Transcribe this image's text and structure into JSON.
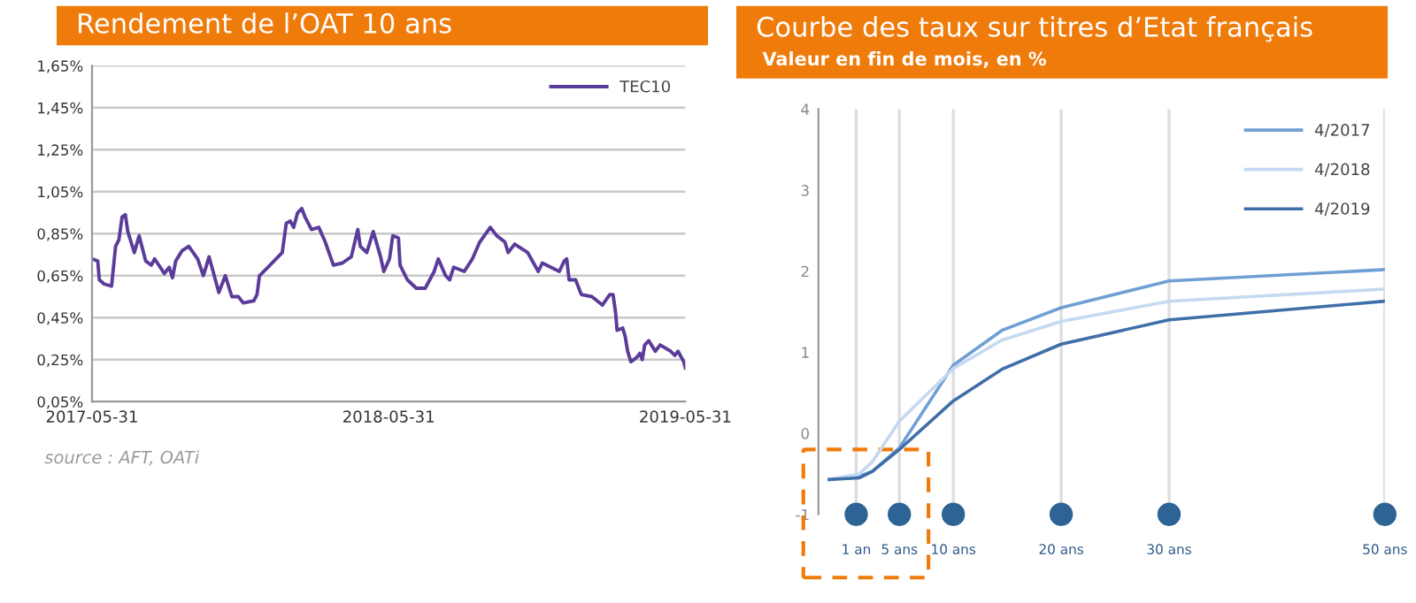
{
  "chart_data": [
    {
      "type": "line",
      "title": "Rendement de l’OAT 10 ans",
      "annotations": [
        "source : AFT, OATi"
      ],
      "grid": "y",
      "legend": "top right",
      "x": [
        "2017-05-31",
        "2017-06-07",
        "2017-06-09",
        "2017-06-15",
        "2017-06-24",
        "2017-06-29",
        "2017-07-03",
        "2017-07-07",
        "2017-07-11",
        "2017-07-14",
        "2017-07-22",
        "2017-07-28",
        "2017-08-05",
        "2017-08-12",
        "2017-08-16",
        "2017-08-28",
        "2017-09-03",
        "2017-09-07",
        "2017-09-11",
        "2017-09-19",
        "2017-09-27",
        "2017-10-08",
        "2017-10-15",
        "2017-10-22",
        "2017-11-03",
        "2017-11-11",
        "2017-11-19",
        "2017-11-27",
        "2017-12-03",
        "2017-12-16",
        "2017-12-20",
        "2017-12-23",
        "2018-01-05",
        "2018-01-20",
        "2018-01-25",
        "2018-01-30",
        "2018-02-03",
        "2018-02-08",
        "2018-02-13",
        "2018-02-17",
        "2018-02-25",
        "2018-03-06",
        "2018-03-14",
        "2018-03-24",
        "2018-04-04",
        "2018-04-15",
        "2018-04-23",
        "2018-04-26",
        "2018-05-04",
        "2018-05-12",
        "2018-05-21",
        "2018-05-25",
        "2018-06-01",
        "2018-06-05",
        "2018-06-12",
        "2018-06-14",
        "2018-06-23",
        "2018-07-04",
        "2018-07-15",
        "2018-07-26",
        "2018-07-31",
        "2018-08-09",
        "2018-08-14",
        "2018-08-19",
        "2018-09-01",
        "2018-09-11",
        "2018-09-20",
        "2018-10-03",
        "2018-10-11",
        "2018-10-21",
        "2018-10-25",
        "2018-11-02",
        "2018-11-18",
        "2018-12-01",
        "2018-12-06",
        "2018-12-27",
        "2019-01-02",
        "2019-01-05",
        "2019-01-08",
        "2019-01-16",
        "2019-01-23",
        "2019-02-05",
        "2019-02-18",
        "2019-02-27",
        "2019-03-03",
        "2019-03-06",
        "2019-03-08",
        "2019-03-15",
        "2019-03-18",
        "2019-03-21",
        "2019-03-25",
        "2019-04-01",
        "2019-04-05",
        "2019-04-08",
        "2019-04-11",
        "2019-04-16",
        "2019-04-24",
        "2019-04-30",
        "2019-05-13",
        "2019-05-18",
        "2019-05-22",
        "2019-05-29",
        "2019-05-31"
      ],
      "series": [
        {
          "name": "TEC10",
          "color": "#5b3c9a",
          "values": [
            0.73,
            0.72,
            0.63,
            0.61,
            0.6,
            0.79,
            0.82,
            0.93,
            0.94,
            0.86,
            0.76,
            0.84,
            0.72,
            0.7,
            0.73,
            0.66,
            0.69,
            0.64,
            0.72,
            0.77,
            0.79,
            0.73,
            0.65,
            0.74,
            0.57,
            0.65,
            0.55,
            0.55,
            0.52,
            0.53,
            0.56,
            0.65,
            0.7,
            0.76,
            0.9,
            0.91,
            0.88,
            0.95,
            0.97,
            0.93,
            0.87,
            0.88,
            0.81,
            0.7,
            0.71,
            0.74,
            0.87,
            0.79,
            0.76,
            0.86,
            0.74,
            0.67,
            0.73,
            0.84,
            0.83,
            0.7,
            0.63,
            0.59,
            0.59,
            0.67,
            0.73,
            0.65,
            0.63,
            0.69,
            0.67,
            0.73,
            0.81,
            0.88,
            0.84,
            0.81,
            0.76,
            0.8,
            0.76,
            0.67,
            0.71,
            0.67,
            0.72,
            0.73,
            0.63,
            0.63,
            0.56,
            0.55,
            0.51,
            0.56,
            0.56,
            0.48,
            0.39,
            0.4,
            0.36,
            0.29,
            0.24,
            0.26,
            0.28,
            0.25,
            0.32,
            0.34,
            0.29,
            0.32,
            0.29,
            0.27,
            0.29,
            0.24,
            0.21
          ]
        }
      ],
      "xlim": [
        "2017-05-31",
        "2019-05-31"
      ],
      "xticks": [
        {
          "value": "2017-05-31",
          "label": "2017-05-31"
        },
        {
          "value": "2018-05-31",
          "label": "2018-05-31"
        },
        {
          "value": "2019-05-31",
          "label": "2019-05-31"
        }
      ],
      "ylim": [
        0.05,
        1.65
      ],
      "yticks": [
        {
          "value": 0.05,
          "label": "0,05%"
        },
        {
          "value": 0.25,
          "label": "0,25%"
        },
        {
          "value": 0.45,
          "label": "0,45%"
        },
        {
          "value": 0.65,
          "label": "0,65%"
        },
        {
          "value": 0.85,
          "label": "0,85%"
        },
        {
          "value": 1.05,
          "label": "1,05%"
        },
        {
          "value": 1.25,
          "label": "1,25%"
        },
        {
          "value": 1.45,
          "label": "1,45%"
        },
        {
          "value": 1.65,
          "label": "1,65%"
        }
      ]
    },
    {
      "type": "line",
      "title": "Courbe des taux sur titres d’Etat français",
      "subtitle": "Valeur en fin de mois, en %",
      "grid": "x",
      "legend": "top right",
      "x": [
        -1.5,
        1.3,
        2.5,
        5,
        10,
        14.5,
        20,
        30,
        50
      ],
      "series": [
        {
          "name": "4/2017",
          "color": "#6f9fd4",
          "values": [
            -0.57,
            -0.53,
            -0.47,
            -0.18,
            0.84,
            1.27,
            1.55,
            1.88,
            2.02
          ]
        },
        {
          "name": "4/2018",
          "color": "#c5d9f0",
          "values": [
            -0.57,
            -0.5,
            -0.35,
            0.15,
            0.8,
            1.15,
            1.38,
            1.63,
            1.78
          ]
        },
        {
          "name": "4/2019",
          "color": "#3f6fa8",
          "values": [
            -0.57,
            -0.55,
            -0.47,
            -0.2,
            0.4,
            0.79,
            1.1,
            1.4,
            1.63
          ]
        }
      ],
      "xlim": [
        -2.5,
        50
      ],
      "xticks": [
        {
          "value": 1,
          "label": "1 an"
        },
        {
          "value": 5,
          "label": "5 ans"
        },
        {
          "value": 10,
          "label": "10 ans"
        },
        {
          "value": 20,
          "label": "20 ans"
        },
        {
          "value": 30,
          "label": "30 ans"
        },
        {
          "value": 50,
          "label": "50 ans"
        }
      ],
      "ylim": [
        -1,
        4
      ],
      "yticks": [
        -1,
        0,
        1,
        2,
        3,
        4
      ]
    }
  ]
}
